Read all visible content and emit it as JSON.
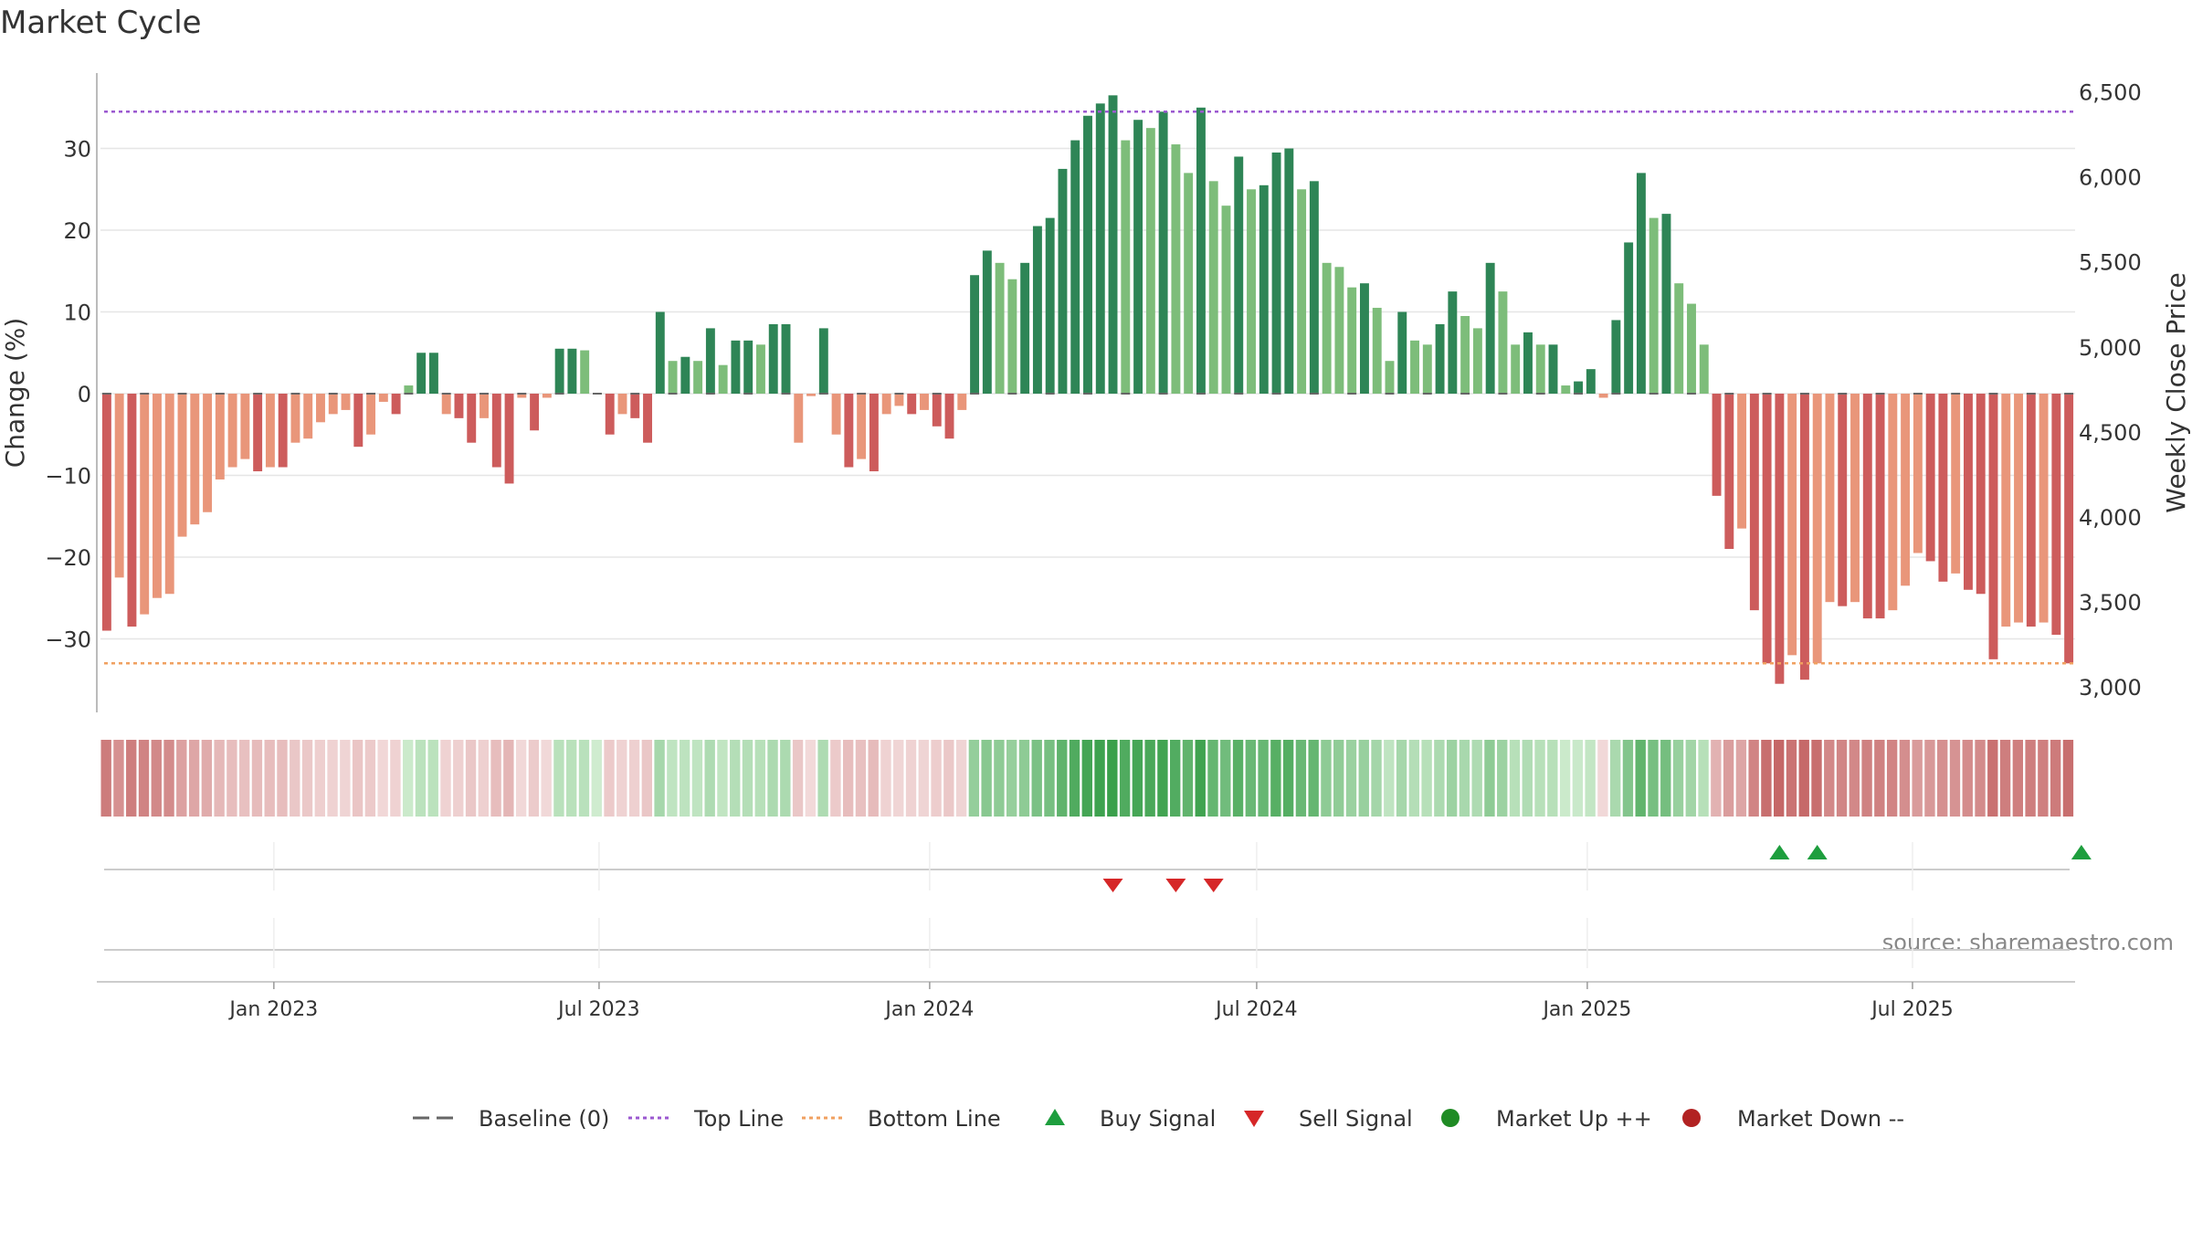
{
  "chart_data": {
    "type": "bar",
    "title": "Market Cycle",
    "ylabel_left": "Change (%)",
    "ylabel_right": "Weekly Close Price",
    "source": "source: sharemaestro.com",
    "ylim": [
      -39,
      39
    ],
    "ylim_right": [
      2850,
      6600
    ],
    "yticks_left": [
      -30,
      -20,
      -10,
      0,
      10,
      20,
      30
    ],
    "yticks_left_labels": [
      "−30",
      "−20",
      "−10",
      "0",
      "10",
      "20",
      "30"
    ],
    "yticks_right": [
      3000,
      3500,
      4000,
      4500,
      5000,
      5500,
      6000,
      6500
    ],
    "yticks_right_labels": [
      "3,000",
      "3,500",
      "4,000",
      "4,500",
      "5,000",
      "5,500",
      "6,000",
      "6,500"
    ],
    "top_line": 34.5,
    "bottom_line": -33,
    "x_start": "2022-09-30",
    "weeks": 157,
    "xticks": [
      "2023-01-01",
      "2023-07-01",
      "2024-01-01",
      "2024-07-01",
      "2025-01-01",
      "2025-07-01"
    ],
    "xtick_labels": [
      "Jan 2023",
      "Jul 2023",
      "Jan 2024",
      "Jul 2024",
      "Jan 2025",
      "Jul 2025"
    ],
    "values": [
      -29,
      -22.5,
      -28.5,
      -27,
      -25,
      -24.5,
      -17.5,
      -16,
      -14.5,
      -10.5,
      -9,
      -8,
      -9.5,
      -9,
      -9,
      -6,
      -5.5,
      -3.5,
      -2.5,
      -2,
      -6.5,
      -5,
      -1,
      -2.5,
      1,
      5,
      5,
      -2.5,
      -3,
      -6,
      -3,
      -9,
      -11,
      -0.5,
      -4.5,
      -0.5,
      5.5,
      5.5,
      5.3,
      0,
      -5,
      -2.5,
      -3,
      -6,
      10,
      4,
      4.5,
      4,
      8,
      3.5,
      6.5,
      6.5,
      6,
      8.5,
      8.5,
      -6,
      -0.3,
      8,
      -5,
      -9,
      -8,
      -9.5,
      -2.5,
      -1.5,
      -2.5,
      -2,
      -4,
      -5.5,
      -2,
      14.5,
      17.5,
      16,
      14,
      16,
      20.5,
      21.5,
      27.5,
      31,
      34,
      35.5,
      36.5,
      31,
      33.5,
      32.5,
      34.5,
      30.5,
      27,
      35,
      26,
      23,
      29,
      25,
      25.5,
      29.5,
      30,
      25,
      26,
      16,
      15.5,
      13,
      13.5,
      10.5,
      4,
      10,
      6.5,
      6,
      8.5,
      12.5,
      9.5,
      8,
      16,
      12.5,
      6,
      7.5,
      6,
      6,
      1,
      1.5,
      3,
      -0.5,
      9,
      18.5,
      27,
      21.5,
      22,
      13.5,
      11,
      6,
      -12.5,
      -19,
      -16.5,
      -26.5,
      -33,
      -35.5,
      -32,
      -35,
      -33,
      -25.5,
      -26,
      -25.5,
      -27.5,
      -27.5,
      -26.5,
      -23.5,
      -19.5,
      -20.5,
      -23,
      -22,
      -24,
      -24.5,
      -32.5,
      -28.5,
      -28,
      -28.5,
      -28,
      -29.5,
      -33
    ],
    "buy_signals": [
      133,
      136,
      157
    ],
    "sell_signals": [
      80,
      85,
      88
    ],
    "legend": [
      {
        "name": "Baseline (0)",
        "type": "dash",
        "color": "#666666"
      },
      {
        "name": "Top Line",
        "type": "dotted",
        "color": "#9b59d0"
      },
      {
        "name": "Bottom Line",
        "type": "dotted",
        "color": "#f0a060"
      },
      {
        "name": "Buy Signal",
        "type": "triangle-up",
        "color": "#1e9e3e"
      },
      {
        "name": "Sell Signal",
        "type": "triangle-down",
        "color": "#d62728"
      },
      {
        "name": "Market Up ++",
        "type": "circle",
        "color": "#1f8b24"
      },
      {
        "name": "Market Down --",
        "type": "circle",
        "color": "#b22222"
      }
    ],
    "colors": {
      "pos_dark": "#2e8556",
      "pos_light": "#7dbd7a",
      "neg_dark": "#cd5c5c",
      "neg_light": "#e9967a",
      "grid": "#e6e6e6",
      "top_line": "#9b59d0",
      "bottom_line": "#f0a060"
    }
  }
}
